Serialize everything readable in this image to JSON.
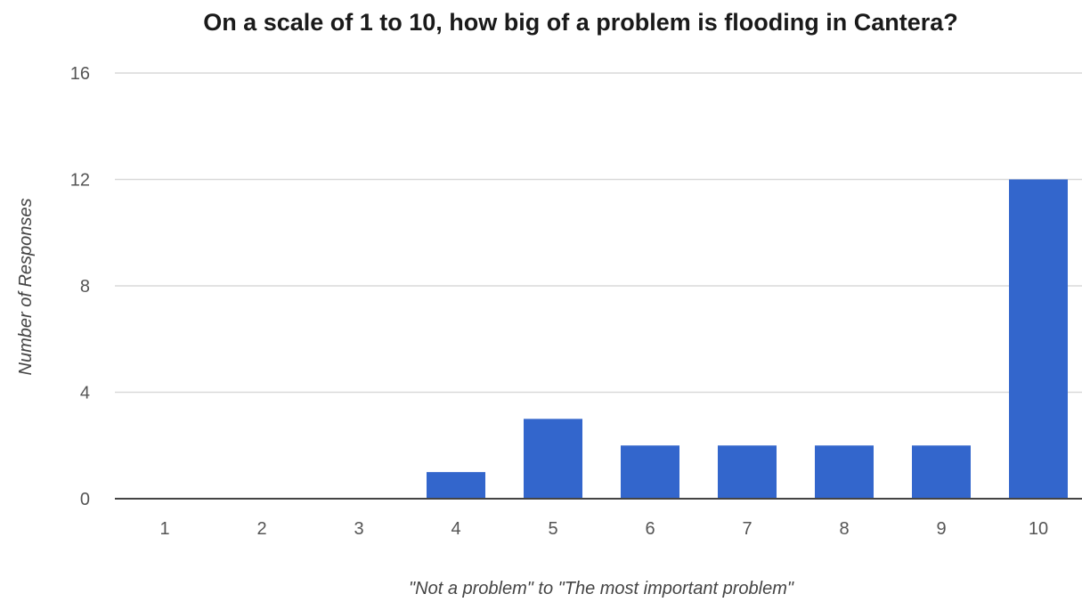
{
  "chart_data": {
    "type": "bar",
    "title": "On a scale of 1 to 10, how big of a problem is flooding in Cantera?",
    "xlabel": "\"Not a problem\" to \"The most important problem\"",
    "ylabel": "Number of Responses",
    "categories": [
      "1",
      "2",
      "3",
      "4",
      "5",
      "6",
      "7",
      "8",
      "9",
      "10"
    ],
    "values": [
      0,
      0,
      0,
      1,
      3,
      2,
      2,
      2,
      2,
      12
    ],
    "ylim": [
      0,
      16
    ],
    "yticks": [
      "0",
      "4",
      "8",
      "12",
      "16"
    ],
    "grid": true,
    "legend": "none",
    "bar_color": "#3366cc"
  }
}
